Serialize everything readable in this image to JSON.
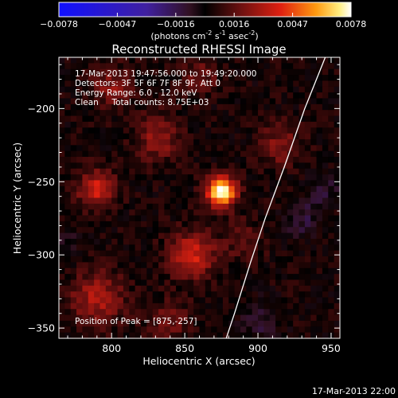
{
  "chart_data": {
    "type": "heatmap",
    "title": "Reconstructed RHESSI Image",
    "xlabel": "Heliocentric X (arcsec)",
    "ylabel": "Heliocentric Y (arcsec)",
    "xlim": [
      764,
      956
    ],
    "ylim": [
      -357,
      -165
    ],
    "x_ticks": [
      800,
      850,
      900,
      950
    ],
    "y_ticks": [
      -200,
      -250,
      -300,
      -350
    ],
    "colorbar": {
      "ticks": [
        "-0.0078",
        "-0.0047",
        "-0.0016",
        "0.0016",
        "0.0047",
        "0.0078"
      ],
      "range": [
        -0.0078,
        0.0078
      ],
      "units_text": "(photons cm",
      "units_exp1": "-2",
      "units_mid": " s",
      "units_exp2": "-1",
      "units_mid2": " asec",
      "units_exp3": "-2",
      "units_end": ")"
    },
    "annotations": [
      "17-Mar-2013 19:47:56.000 to 19:49:20.000",
      "Detectors: 3F 5F 6F 7F 8F 9F, Att 0",
      "Energy Range: 6.0 - 12.0 keV",
      "Clean     Total counts: 8.75E+03"
    ],
    "peak_label": "Position of Peak = [875,-257]",
    "peak": [
      875,
      -257
    ],
    "sources": [
      {
        "x": 875,
        "y": -257,
        "amp": 0.0078,
        "sigma": 7
      },
      {
        "x": 790,
        "y": -255,
        "amp": 0.0035,
        "sigma": 9
      },
      {
        "x": 855,
        "y": -300,
        "amp": 0.0034,
        "sigma": 11
      },
      {
        "x": 832,
        "y": -220,
        "amp": 0.0022,
        "sigma": 11
      },
      {
        "x": 915,
        "y": -225,
        "amp": 0.002,
        "sigma": 10
      },
      {
        "x": 790,
        "y": -330,
        "amp": 0.0026,
        "sigma": 13
      },
      {
        "x": 800,
        "y": -185,
        "amp": 0.002,
        "sigma": 10
      },
      {
        "x": 860,
        "y": -178,
        "amp": 0.0016,
        "sigma": 9
      },
      {
        "x": 930,
        "y": -275,
        "amp": -0.0016,
        "sigma": 8
      },
      {
        "x": 945,
        "y": -255,
        "amp": -0.0014,
        "sigma": 7
      },
      {
        "x": 900,
        "y": -345,
        "amp": -0.0012,
        "sigma": 9
      },
      {
        "x": 768,
        "y": -292,
        "amp": -0.001,
        "sigma": 7
      },
      {
        "x": 890,
        "y": -290,
        "amp": 0.0012,
        "sigma": 10
      },
      {
        "x": 840,
        "y": -345,
        "amp": 0.0015,
        "sigma": 10
      }
    ],
    "limb_curve": [
      [
        948,
        -160
      ],
      [
        932,
        -200
      ],
      [
        918,
        -240
      ],
      [
        905,
        -275
      ],
      [
        895,
        -305
      ],
      [
        884,
        -340
      ],
      [
        878,
        -358
      ]
    ]
  },
  "footer_timestamp": "17-Mar-2013 22:00"
}
